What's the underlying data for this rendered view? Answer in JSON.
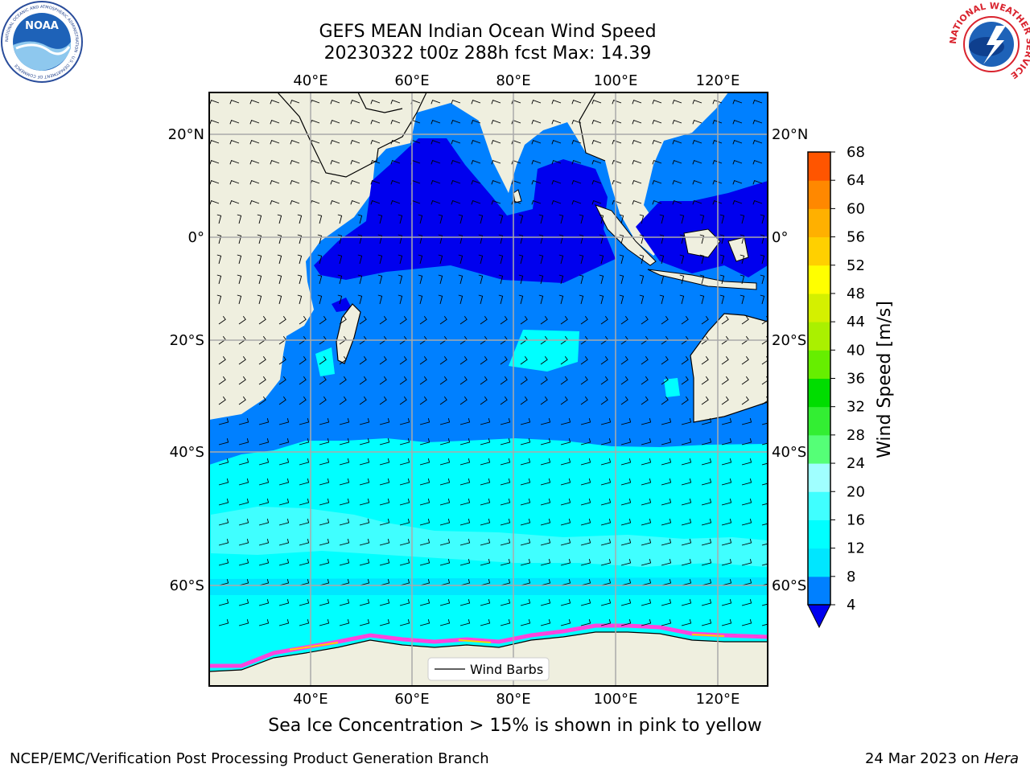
{
  "header": {
    "title_line1": "GEFS MEAN Indian Ocean Wind Speed",
    "title_line2": "20230322 t00z 288h fcst   Max: 14.39"
  },
  "map": {
    "lon_labels": [
      "40°E",
      "60°E",
      "80°E",
      "100°E",
      "120°E"
    ],
    "lat_labels": [
      "20°N",
      "0°",
      "20°S",
      "40°S",
      "60°S"
    ],
    "legend_label": "Wind Barbs"
  },
  "colorbar": {
    "label": "Wind Speed [m/s]",
    "ticks": [
      "4",
      "8",
      "12",
      "16",
      "20",
      "24",
      "28",
      "32",
      "36",
      "40",
      "44",
      "48",
      "52",
      "56",
      "60",
      "64",
      "68"
    ],
    "colors": [
      "#0080ff",
      "#00e6ff",
      "#00ffff",
      "#40ffff",
      "#a0ffff",
      "#55ff77",
      "#33ee33",
      "#00dd00",
      "#66ee00",
      "#aaf000",
      "#d4f000",
      "#ffff00",
      "#ffd000",
      "#ffb000",
      "#ff8800",
      "#ff5500",
      "#ff2200",
      "#ff0000"
    ],
    "extend_color": "#0000ee"
  },
  "logos": {
    "noaa_text": "NOAA",
    "noaa_ring": "NATIONAL OCEANIC AND ATMOSPHERIC ADMINISTRATION · U.S. DEPARTMENT OF COMMERCE",
    "nws_ring": "NATIONAL WEATHER SERVICE"
  },
  "footer": {
    "subtitle": "Sea Ice Concentration > 15% is shown in pink to yellow",
    "credit": "NCEP/EMC/Verification Post Processing Product Generation Branch",
    "date_prefix": "24 Mar 2023 on ",
    "date_machine": "Hera"
  }
}
